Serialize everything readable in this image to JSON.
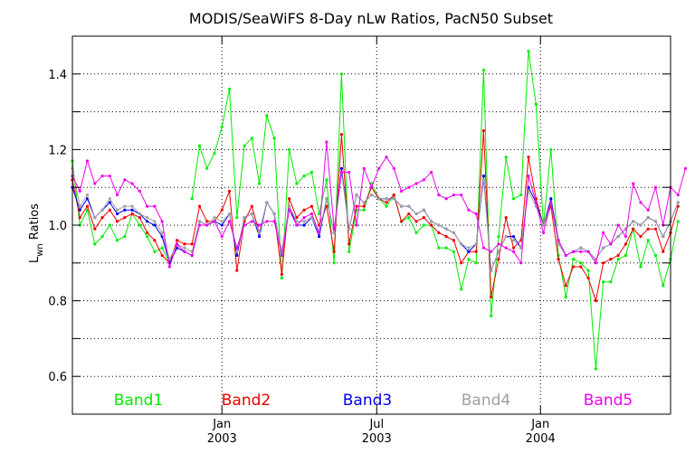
{
  "chart_data": {
    "type": "line",
    "title": "MODIS/SeaWiFS 8-Day nLw Ratios, PacN50 Subset",
    "ylabel": "Lwn Ratios",
    "ylabel_main": "L",
    "ylabel_sub": "wn",
    "ylabel_rest": " Ratios",
    "xlabel": "",
    "ylim": [
      0.5,
      1.5
    ],
    "xlim": [
      0,
      80
    ],
    "grid": true,
    "grid_style": "dotted",
    "legend_position": "bottom-inside",
    "y_ticks": [
      {
        "value": 0.6,
        "label": "0.6"
      },
      {
        "value": 0.8,
        "label": "0.8"
      },
      {
        "value": 1.0,
        "label": "1.0"
      },
      {
        "value": 1.2,
        "label": "1.2"
      },
      {
        "value": 1.4,
        "label": "1.4"
      }
    ],
    "y_minor_ticks": [
      0.5,
      0.7,
      0.9,
      1.1,
      1.3,
      1.5
    ],
    "x_ticks": [
      {
        "value": 20.0,
        "month": "Jan",
        "year": "2003"
      },
      {
        "value": 40.7,
        "month": "Jul",
        "year": "2003"
      },
      {
        "value": 62.6,
        "month": "Jan",
        "year": "2004"
      }
    ],
    "series": [
      {
        "name": "Band1",
        "color": "#00ee00",
        "values": [
          1.17,
          1.0,
          1.04,
          0.95,
          0.97,
          1.0,
          0.96,
          0.97,
          1.03,
          1.0,
          0.97,
          0.93,
          0.94,
          0.9,
          null,
          null,
          1.07,
          1.21,
          1.15,
          1.19,
          1.26,
          1.36,
          1.02,
          1.21,
          1.23,
          1.11,
          1.29,
          1.23,
          0.86,
          1.2,
          1.11,
          1.13,
          1.14,
          1.03,
          1.12,
          0.9,
          1.4,
          0.93,
          1.04,
          1.04,
          1.11,
          1.07,
          1.05,
          1.08,
          1.01,
          1.02,
          0.98,
          1.0,
          1.0,
          0.94,
          0.94,
          0.93,
          0.83,
          0.91,
          0.9,
          1.41,
          0.76,
          0.97,
          1.18,
          1.07,
          1.08,
          1.46,
          1.32,
          1.0,
          1.2,
          0.92,
          0.81,
          0.91,
          0.9,
          0.88,
          0.62,
          0.85,
          0.85,
          0.91,
          0.92,
          0.99,
          0.89,
          0.96,
          0.92,
          0.84,
          0.91,
          1.01
        ]
      },
      {
        "name": "Band2",
        "color": "#ee0000",
        "values": [
          1.12,
          1.02,
          1.05,
          0.99,
          1.02,
          1.04,
          1.01,
          1.02,
          1.03,
          1.02,
          0.98,
          0.96,
          0.92,
          0.9,
          0.96,
          0.95,
          0.95,
          1.05,
          1.01,
          1.01,
          1.04,
          1.09,
          0.88,
          1.01,
          1.05,
          0.98,
          1.06,
          1.03,
          0.87,
          1.07,
          1.02,
          1.04,
          1.05,
          1.0,
          1.05,
          0.93,
          1.24,
          0.95,
          1.05,
          1.05,
          1.1,
          1.07,
          1.06,
          1.08,
          1.01,
          1.03,
          1.01,
          1.02,
          1.0,
          0.98,
          0.97,
          0.96,
          0.9,
          0.93,
          0.93,
          1.25,
          0.81,
          0.91,
          1.02,
          0.94,
          0.96,
          1.18,
          1.07,
          1.0,
          1.05,
          0.91,
          0.84,
          0.89,
          0.89,
          0.86,
          0.8,
          0.9,
          0.91,
          0.92,
          0.95,
          0.99,
          0.97,
          0.99,
          0.99,
          0.93,
          0.98,
          1.05
        ]
      },
      {
        "name": "Band3",
        "color": "#0000ee",
        "values": [
          1.1,
          1.04,
          1.07,
          1.02,
          1.04,
          1.06,
          1.03,
          1.04,
          1.04,
          1.03,
          1.01,
          1.0,
          0.97,
          0.9,
          0.94,
          0.93,
          0.92,
          1.01,
          1.0,
          1.01,
          1.0,
          1.03,
          0.92,
          1.02,
          1.03,
          0.97,
          1.06,
          1.03,
          0.93,
          1.05,
          1.0,
          1.0,
          1.02,
          0.97,
          1.07,
          0.98,
          1.15,
          0.99,
          1.08,
          1.06,
          1.08,
          1.07,
          1.07,
          1.07,
          1.05,
          1.05,
          1.03,
          1.04,
          1.01,
          1.0,
          0.99,
          0.98,
          0.95,
          0.93,
          0.95,
          1.13,
          0.88,
          0.93,
          0.97,
          0.97,
          0.94,
          1.1,
          1.06,
          1.0,
          1.07,
          0.96,
          0.92,
          0.93,
          0.94,
          0.93,
          0.91,
          0.94,
          0.95,
          0.97,
          0.99,
          1.01,
          1.0,
          1.02,
          1.01,
          0.97,
          1.01,
          1.06
        ]
      },
      {
        "name": "Band4",
        "color": "#a0a0a0",
        "values": [
          1.15,
          1.05,
          1.08,
          1.02,
          1.04,
          1.07,
          1.04,
          1.05,
          1.05,
          1.03,
          1.02,
          1.01,
          0.98,
          0.91,
          0.95,
          0.94,
          0.93,
          1.01,
          1.0,
          1.02,
          1.01,
          1.03,
          0.93,
          1.02,
          1.03,
          0.98,
          1.06,
          1.03,
          0.93,
          1.05,
          1.01,
          1.01,
          1.02,
          0.98,
          1.07,
          0.98,
          1.14,
          0.99,
          1.08,
          1.06,
          1.08,
          1.07,
          1.07,
          1.07,
          1.05,
          1.05,
          1.03,
          1.04,
          1.01,
          1.0,
          0.99,
          0.98,
          0.95,
          0.94,
          0.95,
          1.12,
          0.88,
          0.93,
          0.97,
          0.96,
          0.94,
          1.09,
          1.05,
          1.0,
          1.06,
          0.95,
          0.92,
          0.93,
          0.94,
          0.93,
          0.91,
          0.94,
          0.95,
          0.97,
          0.99,
          1.01,
          1.0,
          1.02,
          1.01,
          0.97,
          1.01,
          1.06
        ]
      },
      {
        "name": "Band5",
        "color": "#ee00ee",
        "values": [
          1.13,
          1.09,
          1.17,
          1.11,
          1.13,
          1.13,
          1.08,
          1.12,
          1.11,
          1.09,
          1.05,
          1.05,
          1.01,
          0.89,
          0.95,
          0.93,
          0.92,
          1.0,
          1.0,
          1.01,
          0.97,
          1.01,
          0.94,
          1.0,
          1.01,
          1.0,
          1.01,
          1.01,
          0.92,
          1.04,
          1.0,
          1.02,
          1.03,
          0.98,
          1.22,
          0.99,
          1.14,
          1.14,
          1.0,
          1.15,
          1.1,
          1.15,
          1.18,
          1.15,
          1.09,
          1.1,
          1.11,
          1.12,
          1.14,
          1.08,
          1.07,
          1.08,
          1.08,
          1.04,
          1.03,
          0.94,
          0.93,
          0.95,
          0.94,
          0.93,
          0.9,
          1.13,
          1.06,
          0.98,
          1.06,
          0.96,
          0.92,
          0.93,
          0.93,
          0.93,
          0.9,
          0.98,
          0.95,
          1.0,
          0.97,
          1.11,
          1.06,
          1.04,
          1.1,
          1.0,
          1.1,
          1.08,
          1.15
        ]
      }
    ]
  }
}
